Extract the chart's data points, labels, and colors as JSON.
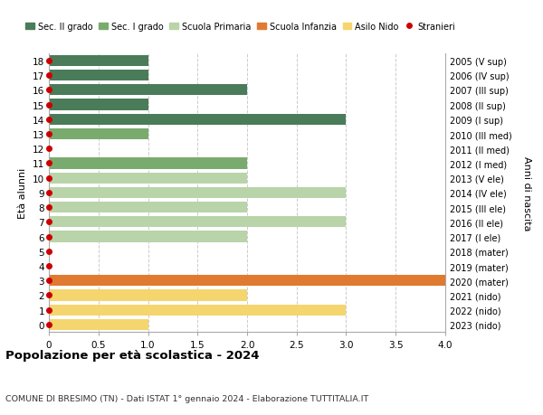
{
  "ages": [
    18,
    17,
    16,
    15,
    14,
    13,
    12,
    11,
    10,
    9,
    8,
    7,
    6,
    5,
    4,
    3,
    2,
    1,
    0
  ],
  "right_labels": [
    "2005 (V sup)",
    "2006 (IV sup)",
    "2007 (III sup)",
    "2008 (II sup)",
    "2009 (I sup)",
    "2010 (III med)",
    "2011 (II med)",
    "2012 (I med)",
    "2013 (V ele)",
    "2014 (IV ele)",
    "2015 (III ele)",
    "2016 (II ele)",
    "2017 (I ele)",
    "2018 (mater)",
    "2019 (mater)",
    "2020 (mater)",
    "2021 (nido)",
    "2022 (nido)",
    "2023 (nido)"
  ],
  "values": [
    1,
    1,
    2,
    1,
    3,
    1,
    0,
    2,
    2,
    3,
    2,
    3,
    2,
    0,
    0,
    4,
    2,
    3,
    1
  ],
  "bar_colors": [
    "#4a7c59",
    "#4a7c59",
    "#4a7c59",
    "#4a7c59",
    "#4a7c59",
    "#7aab6e",
    "#7aab6e",
    "#7aab6e",
    "#b8d4a8",
    "#b8d4a8",
    "#b8d4a8",
    "#b8d4a8",
    "#b8d4a8",
    "#e07a30",
    "#e07a30",
    "#e07a30",
    "#f5d56e",
    "#f5d56e",
    "#f5d56e"
  ],
  "stranieri_dots_ages": [
    18,
    17,
    16,
    15,
    14,
    13,
    12,
    11,
    10,
    9,
    8,
    7,
    6,
    5,
    4,
    3,
    2,
    1,
    0
  ],
  "dot_color": "#cc0000",
  "dot_size": 4,
  "xlim": [
    0,
    4.0
  ],
  "xticks": [
    0,
    0.5,
    1.0,
    1.5,
    2.0,
    2.5,
    3.0,
    3.5,
    4.0
  ],
  "xtick_labels": [
    "0",
    "0.5",
    "1.0",
    "1.5",
    "2.0",
    "2.5",
    "3.0",
    "3.5",
    "4.0"
  ],
  "ylabel_left": "Età alunni",
  "ylabel_right": "Anni di nascita",
  "title": "Popolazione per età scolastica - 2024",
  "subtitle": "COMUNE DI BRESIMO (TN) - Dati ISTAT 1° gennaio 2024 - Elaborazione TUTTITALIA.IT",
  "legend_labels": [
    "Sec. II grado",
    "Sec. I grado",
    "Scuola Primaria",
    "Scuola Infanzia",
    "Asilo Nido",
    "Stranieri"
  ],
  "legend_colors": [
    "#4a7c59",
    "#7aab6e",
    "#b8d4a8",
    "#e07a30",
    "#f5d56e",
    "#cc0000"
  ],
  "background_color": "#ffffff",
  "grid_color": "#cccccc",
  "bar_height": 0.75
}
